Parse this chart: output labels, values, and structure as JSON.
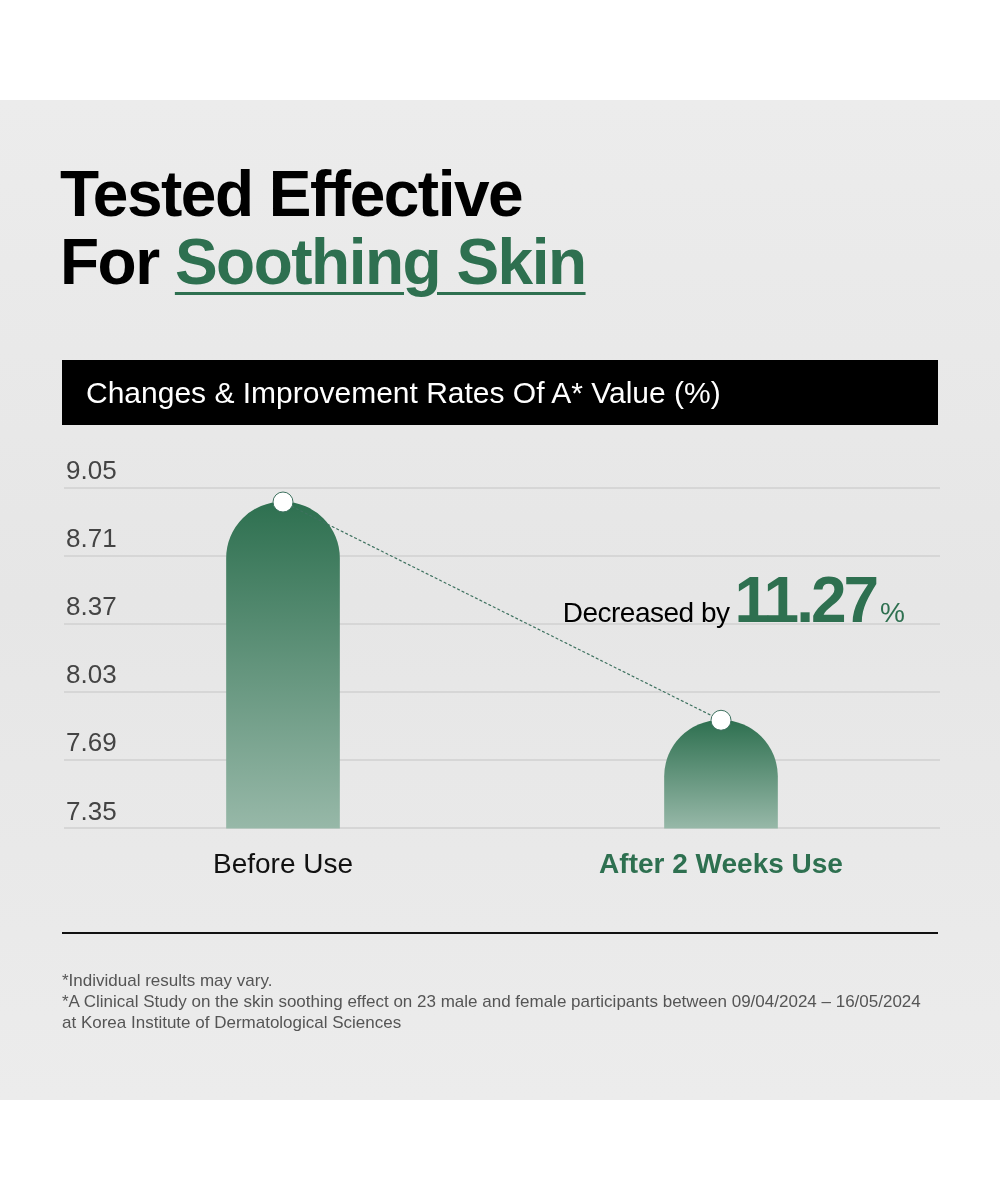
{
  "chart_data": {
    "type": "bar",
    "title": "Tested Effective For Soothing Skin",
    "subtitle": "Changes & Improvement Rates Of A* Value (%)",
    "categories": [
      "Before Use",
      "After 2 Weeks Use"
    ],
    "series": [
      {
        "color": "#2e7050",
        "values": [
          8.98,
          7.89
        ]
      },
      {
        "type": "line",
        "color": "#3f7260",
        "values": [
          8.98,
          7.89
        ],
        "line_style": "dotted",
        "marker": "circle"
      }
    ],
    "ylim": [
      7.35,
      9.05
    ],
    "yticks": [
      9.05,
      8.71,
      8.37,
      8.03,
      7.69,
      7.35
    ],
    "grid": "y",
    "annotations": [
      "Decreased by11.27%",
      "*Individual results may vary.",
      "*A Clinical Study on the skin soothing effect on 23 male and female participants between 09/04/2024 – 16/05/2024 at Korea Institute of Dermatological Sciences"
    ]
  }
}
